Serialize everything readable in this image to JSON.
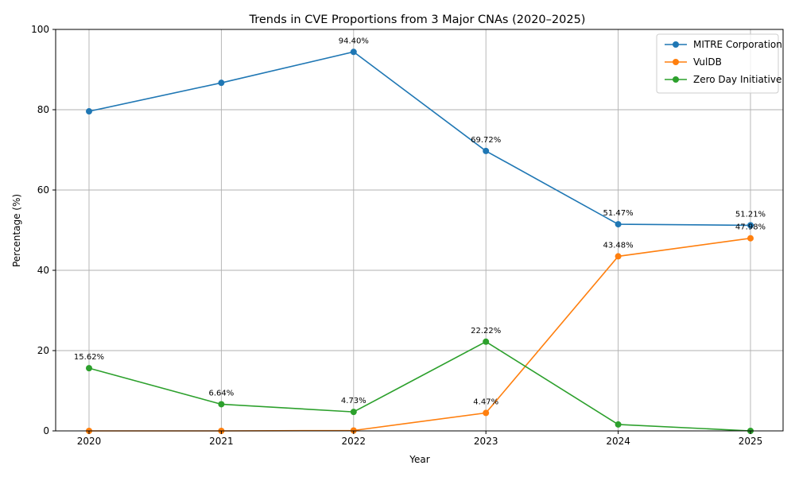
{
  "chart_data": {
    "type": "line",
    "title": "Trends in CVE Proportions from 3 Major CNAs (2020–2025)",
    "xlabel": "Year",
    "ylabel": "Percentage (%)",
    "x": [
      "2020",
      "2021",
      "2022",
      "2023",
      "2024",
      "2025"
    ],
    "ylim": [
      0,
      100
    ],
    "yticks": [
      "0",
      "20",
      "40",
      "60",
      "80",
      "100"
    ],
    "grid": true,
    "legend_position": "top-right",
    "series": [
      {
        "name": "MITRE Corporation",
        "color": "#1f77b4",
        "values": [
          79.6,
          86.7,
          94.4,
          69.72,
          51.47,
          51.21
        ],
        "labels": [
          "",
          "",
          "94.40%",
          "69.72%",
          "51.47%",
          "51.21%"
        ]
      },
      {
        "name": "VulDB",
        "color": "#ff7f0e",
        "values": [
          0,
          0,
          0.1,
          4.47,
          43.48,
          47.98
        ],
        "labels": [
          "",
          "",
          "",
          "4.47%",
          "43.48%",
          "47.98%"
        ]
      },
      {
        "name": "Zero Day Initiative",
        "color": "#2ca02c",
        "values": [
          15.62,
          6.64,
          4.73,
          22.22,
          1.6,
          0
        ],
        "labels": [
          "15.62%",
          "6.64%",
          "4.73%",
          "22.22%",
          "",
          ""
        ]
      }
    ]
  }
}
